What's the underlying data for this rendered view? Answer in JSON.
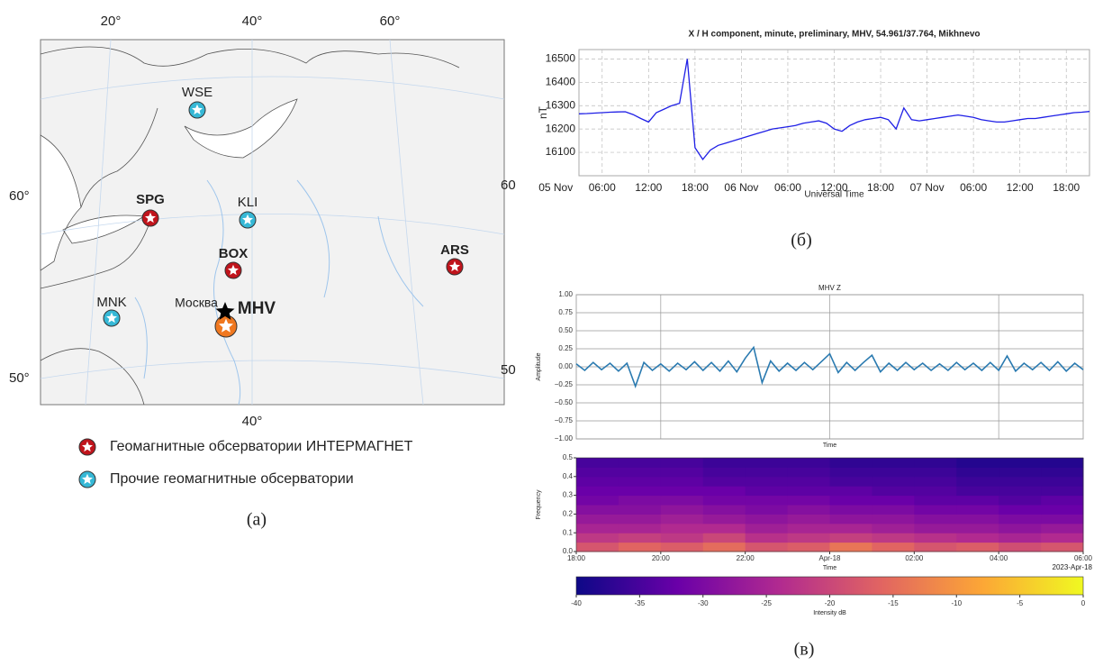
{
  "map": {
    "lon_ticks_top": [
      "20°",
      "40°",
      "60°"
    ],
    "lat_ticks_left": [
      "60°",
      "50°"
    ],
    "lon_tick_bottom": "40°",
    "lat_ticks_right": [
      "60",
      "50"
    ],
    "stations": [
      {
        "code": "WSE",
        "color": "#36b8d6",
        "label_color": "#2a2ae0"
      },
      {
        "code": "SPG",
        "color": "#c0141c",
        "label_color": "#e0201c"
      },
      {
        "code": "KLI",
        "color": "#36b8d6",
        "label_color": "#2a2ae0"
      },
      {
        "code": "BOX",
        "color": "#c0141c",
        "label_color": "#e0201c"
      },
      {
        "code": "ARS",
        "color": "#c0141c",
        "label_color": "#e0201c"
      },
      {
        "code": "MNK",
        "color": "#36b8d6",
        "label_color": "#2a2ae0"
      },
      {
        "code": "MHV",
        "color": "#f07820",
        "label_color": "#f07820"
      }
    ],
    "city": "Москва",
    "legend": [
      {
        "label": "Геомагнитные обсерватории ИНТЕРМАГНЕТ",
        "color": "#c0141c"
      },
      {
        "label": "Прочие геомагнитные обсерватории",
        "color": "#36b8d6"
      }
    ],
    "caption": "(а)"
  },
  "captions": [
    "(б)",
    "(в)"
  ],
  "chart_data": [
    {
      "type": "line",
      "title": "X / H component, minute, preliminary, MHV, 54.961/37.764, Mikhnevo",
      "ylabel": "nT",
      "xlabel": "Universal Time",
      "color": "#1f1fe6",
      "grid": true,
      "xtick_labels": true,
      "x": [
        3,
        4,
        5,
        6,
        7,
        8,
        9,
        10,
        11,
        12,
        13,
        14,
        15,
        16,
        17,
        18,
        19,
        20,
        21,
        22,
        23,
        24,
        25,
        26,
        27,
        28,
        29,
        30,
        31,
        32,
        33,
        34,
        35,
        36,
        37,
        38,
        39,
        40,
        41,
        42,
        43,
        44,
        45,
        46,
        47,
        48,
        49,
        50,
        51,
        52,
        53,
        54,
        55,
        56,
        57,
        58,
        59,
        60,
        61,
        62,
        63,
        64,
        65,
        66,
        67,
        68,
        69
      ],
      "values": [
        16265,
        16266,
        16268,
        16270,
        16272,
        16273,
        16274,
        16262,
        16245,
        16230,
        16270,
        16285,
        16300,
        16310,
        16500,
        16120,
        16070,
        16110,
        16130,
        16140,
        16150,
        16160,
        16170,
        16180,
        16190,
        16200,
        16205,
        16210,
        16215,
        16225,
        16230,
        16235,
        16225,
        16200,
        16190,
        16215,
        16230,
        16240,
        16245,
        16250,
        16240,
        16200,
        16290,
        16240,
        16235,
        16240,
        16245,
        16250,
        16255,
        16260,
        16255,
        16250,
        16240,
        16235,
        16230,
        16230,
        16235,
        16240,
        16245,
        16245,
        16250,
        16255,
        16260,
        16265,
        16270,
        16272,
        16275
      ],
      "xlim": [
        3,
        69
      ],
      "ylim": [
        16000,
        16540
      ],
      "xticks": [
        {
          "value": 0,
          "label": "05 Nov"
        },
        {
          "value": 6,
          "label": "06:00"
        },
        {
          "value": 12,
          "label": "12:00"
        },
        {
          "value": 18,
          "label": "18:00"
        },
        {
          "value": 24,
          "label": "06 Nov"
        },
        {
          "value": 30,
          "label": "06:00"
        },
        {
          "value": 36,
          "label": "12:00"
        },
        {
          "value": 42,
          "label": "18:00"
        },
        {
          "value": 48,
          "label": "07 Nov"
        },
        {
          "value": 54,
          "label": "06:00"
        },
        {
          "value": 60,
          "label": "12:00"
        },
        {
          "value": 66,
          "label": "18:00"
        }
      ],
      "yticks": [
        16100,
        16200,
        16300,
        16400,
        16500
      ]
    },
    {
      "type": "line",
      "title": "MHV Z",
      "ylabel": "Amplitude",
      "xlabel": "Time",
      "color": "#2a7ab0",
      "grid": true,
      "xtick_labels": false,
      "x": [
        0,
        0.2,
        0.4,
        0.6,
        0.8,
        1,
        1.2,
        1.4,
        1.6,
        1.8,
        2,
        2.2,
        2.4,
        2.6,
        2.8,
        3,
        3.2,
        3.4,
        3.6,
        3.8,
        4,
        4.2,
        4.4,
        4.6,
        4.8,
        5,
        5.2,
        5.4,
        5.6,
        5.8,
        6,
        6.2,
        6.4,
        6.6,
        6.8,
        7,
        7.2,
        7.4,
        7.6,
        7.8,
        8,
        8.2,
        8.4,
        8.6,
        8.8,
        9,
        9.2,
        9.4,
        9.6,
        9.8,
        10,
        10.2,
        10.4,
        10.6,
        10.8,
        11,
        11.2,
        11.4,
        11.6,
        11.8,
        12
      ],
      "values": [
        0.04,
        -0.05,
        0.06,
        -0.04,
        0.05,
        -0.06,
        0.05,
        -0.27,
        0.06,
        -0.05,
        0.04,
        -0.06,
        0.05,
        -0.04,
        0.07,
        -0.05,
        0.06,
        -0.06,
        0.08,
        -0.07,
        0.12,
        0.27,
        -0.22,
        0.08,
        -0.06,
        0.05,
        -0.05,
        0.06,
        -0.04,
        0.07,
        0.18,
        -0.08,
        0.06,
        -0.05,
        0.06,
        0.16,
        -0.07,
        0.05,
        -0.05,
        0.06,
        -0.04,
        0.05,
        -0.05,
        0.04,
        -0.05,
        0.06,
        -0.04,
        0.05,
        -0.05,
        0.06,
        -0.05,
        0.15,
        -0.06,
        0.05,
        -0.04,
        0.06,
        -0.05,
        0.07,
        -0.06,
        0.05,
        -0.04
      ],
      "xlim": [
        0,
        12
      ],
      "ylim": [
        -1,
        1
      ],
      "xticks": [
        2,
        6,
        10
      ],
      "yticks": [
        {
          "value": -1,
          "label": "−1.00"
        },
        {
          "value": -0.75,
          "label": "−0.75"
        },
        {
          "value": -0.5,
          "label": "−0.50"
        },
        {
          "value": -0.25,
          "label": "−0.25"
        },
        {
          "value": 0,
          "label": "0.00"
        },
        {
          "value": 0.25,
          "label": "0.25"
        },
        {
          "value": 0.5,
          "label": "0.50"
        },
        {
          "value": 0.75,
          "label": "0.75"
        },
        {
          "value": 1,
          "label": "1.00"
        }
      ]
    },
    {
      "type": "heatmap",
      "ylabel": "Frequency",
      "xlabel": "Time",
      "x_offset_label": "2023-Apr-18",
      "xlim": [
        0,
        12
      ],
      "ylim": [
        0,
        0.5
      ],
      "xticks": [
        {
          "value": 0,
          "label": "18:00"
        },
        {
          "value": 2,
          "label": "20:00"
        },
        {
          "value": 4,
          "label": "22:00"
        },
        {
          "value": 6,
          "label": "Apr-18"
        },
        {
          "value": 8,
          "label": "02:00"
        },
        {
          "value": 10,
          "label": "04:00"
        },
        {
          "value": 12,
          "label": "06:00"
        }
      ],
      "yticks": [
        {
          "value": 0,
          "label": "0.0"
        },
        0.1,
        0.2,
        0.3,
        0.4,
        0.5
      ],
      "z": [
        [
          -18,
          -16,
          -17,
          -15,
          -18,
          -17,
          -14,
          -16,
          -18,
          -17,
          -19,
          -18
        ],
        [
          -22,
          -21,
          -22,
          -20,
          -23,
          -22,
          -21,
          -22,
          -23,
          -24,
          -25,
          -24
        ],
        [
          -25,
          -25,
          -24,
          -24,
          -26,
          -25,
          -25,
          -26,
          -27,
          -27,
          -28,
          -27
        ],
        [
          -27,
          -27,
          -26,
          -27,
          -28,
          -27,
          -28,
          -28,
          -29,
          -29,
          -30,
          -30
        ],
        [
          -29,
          -29,
          -28,
          -29,
          -30,
          -29,
          -30,
          -30,
          -31,
          -31,
          -32,
          -32
        ],
        [
          -31,
          -30,
          -30,
          -31,
          -31,
          -31,
          -32,
          -32,
          -33,
          -33,
          -34,
          -33
        ],
        [
          -32,
          -32,
          -32,
          -32,
          -33,
          -33,
          -33,
          -34,
          -34,
          -35,
          -35,
          -35
        ],
        [
          -33,
          -33,
          -33,
          -34,
          -34,
          -34,
          -35,
          -35,
          -35,
          -36,
          -36,
          -36
        ],
        [
          -34,
          -34,
          -34,
          -35,
          -35,
          -35,
          -36,
          -36,
          -36,
          -37,
          -37,
          -37
        ],
        [
          -35,
          -35,
          -35,
          -36,
          -36,
          -36,
          -37,
          -37,
          -37,
          -38,
          -38,
          -38
        ]
      ],
      "clim": [
        -40,
        0
      ],
      "cticks": [
        -40,
        -35,
        -30,
        -25,
        -20,
        -15,
        -10,
        -5,
        0
      ],
      "clabel": "Intensity dB"
    }
  ]
}
